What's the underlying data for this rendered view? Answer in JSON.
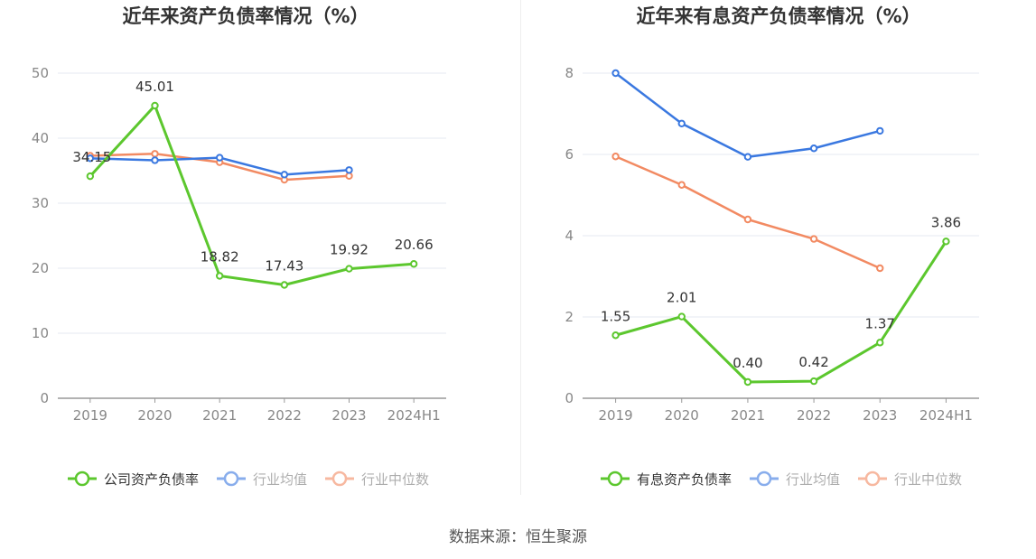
{
  "footer": {
    "source": "数据来源：恒生聚源"
  },
  "colors": {
    "company": "#5cc72e",
    "avg": "#3a78e0",
    "median": "#f28a62",
    "grid": "#e6eaf2",
    "axis": "#999999",
    "text": "#333333",
    "tick": "#888888"
  },
  "chart_data": [
    {
      "type": "line",
      "title": "近年来资产负债率情况（%）",
      "categories": [
        "2019",
        "2020",
        "2021",
        "2022",
        "2023",
        "2024H1"
      ],
      "ylim": [
        0,
        50
      ],
      "yticks": [
        0,
        10,
        20,
        30,
        40,
        50
      ],
      "series": [
        {
          "name": "公司资产负债率",
          "values": [
            34.15,
            45.01,
            18.82,
            17.43,
            19.92,
            20.66
          ],
          "labels": [
            "34.15",
            "45.01",
            "18.82",
            "17.43",
            "19.92",
            "20.66"
          ]
        },
        {
          "name": "行业均值",
          "values": [
            36.9,
            36.6,
            37.0,
            34.4,
            35.1,
            null
          ]
        },
        {
          "name": "行业中位数",
          "values": [
            37.3,
            37.6,
            36.3,
            33.6,
            34.2,
            null
          ]
        }
      ]
    },
    {
      "type": "line",
      "title": "近年来有息资产负债率情况（%）",
      "categories": [
        "2019",
        "2020",
        "2021",
        "2022",
        "2023",
        "2024H1"
      ],
      "ylim": [
        0,
        8
      ],
      "yticks": [
        0,
        2,
        4,
        6,
        8
      ],
      "series": [
        {
          "name": "有息资产负债率",
          "values": [
            1.55,
            2.01,
            0.4,
            0.42,
            1.37,
            3.86
          ],
          "labels": [
            "1.55",
            "2.01",
            "0.40",
            "0.42",
            "1.37",
            "3.86"
          ]
        },
        {
          "name": "行业均值",
          "values": [
            8.0,
            6.76,
            5.94,
            6.15,
            6.58,
            null
          ]
        },
        {
          "name": "行业中位数",
          "values": [
            5.95,
            5.25,
            4.4,
            3.92,
            3.2,
            null
          ]
        }
      ]
    }
  ]
}
